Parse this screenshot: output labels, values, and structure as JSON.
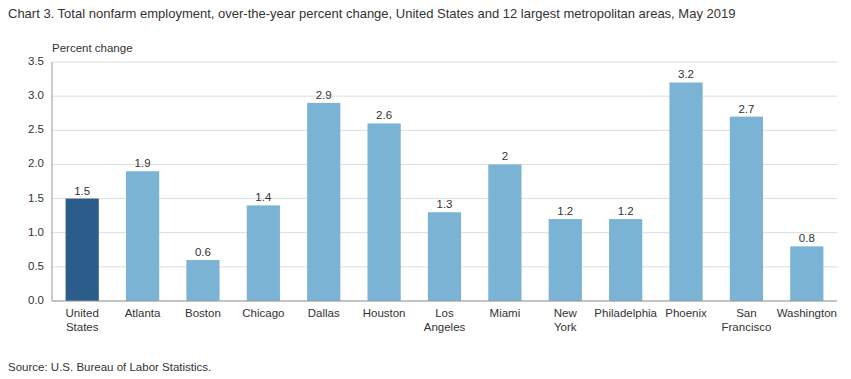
{
  "chart_data": {
    "type": "bar",
    "title": "Chart 3. Total nonfarm employment, over-the-year percent change, United States and 12 largest metropolitan areas, May 2019",
    "ylabel": "Percent change",
    "source": "Source: U.S. Bureau of Labor Statistics.",
    "categories": [
      "United\nStates",
      "Atlanta",
      "Boston",
      "Chicago",
      "Dallas",
      "Houston",
      "Los\nAngeles",
      "Miami",
      "New\nYork",
      "Philadelphia",
      "Phoenix",
      "San\nFrancisco",
      "Washington"
    ],
    "values": [
      1.5,
      1.9,
      0.6,
      1.4,
      2.9,
      2.6,
      1.3,
      2.0,
      1.2,
      1.2,
      3.2,
      2.7,
      0.8
    ],
    "colors": [
      "#2b5c8a",
      "#7ab3d3",
      "#7ab3d3",
      "#7ab3d3",
      "#7ab3d3",
      "#7ab3d3",
      "#7ab3d3",
      "#7ab3d3",
      "#7ab3d3",
      "#7ab3d3",
      "#7ab3d3",
      "#7ab3d3",
      "#7ab3d3"
    ],
    "ylim": [
      0,
      3.5
    ],
    "yticks": [
      {
        "value": 0.0,
        "label": "0.0"
      },
      0.5,
      {
        "value": 1.0,
        "label": "1.0"
      },
      1.5,
      {
        "value": 2.0,
        "label": "2.0"
      },
      2.5,
      {
        "value": 3.0,
        "label": "3.0"
      },
      3.5
    ],
    "grid": true,
    "data_labels": true
  }
}
